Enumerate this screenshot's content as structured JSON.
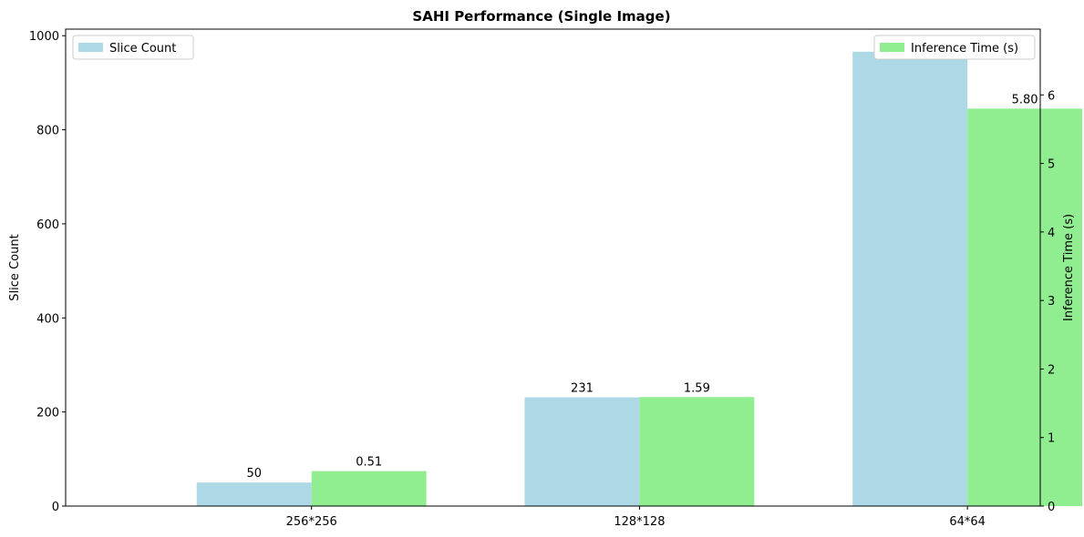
{
  "chart_data": {
    "type": "bar",
    "title": "SAHI Performance (Single Image)",
    "categories": [
      "256*256",
      "128*128",
      "64*64"
    ],
    "series": [
      {
        "name": "Slice Count",
        "axis": "left",
        "color": "#add8e6",
        "values": [
          50,
          231,
          966
        ],
        "labels": [
          "50",
          "231",
          "966"
        ]
      },
      {
        "name": "Inference Time (s)",
        "axis": "right",
        "color": "#90ee90",
        "values": [
          0.51,
          1.59,
          5.8
        ],
        "labels": [
          "0.51",
          "1.59",
          "5.80"
        ]
      }
    ],
    "y_left": {
      "label": "Slice Count",
      "range": [
        0,
        1014
      ],
      "ticks": [
        0,
        200,
        400,
        600,
        800,
        1000
      ]
    },
    "y_right": {
      "label": "Inference Time (s)",
      "range": [
        0,
        6.96
      ],
      "ticks": [
        0,
        1,
        2,
        3,
        4,
        5,
        6
      ]
    },
    "legend_left_position": "upper-left",
    "legend_right_position": "upper-right",
    "grid": false
  }
}
